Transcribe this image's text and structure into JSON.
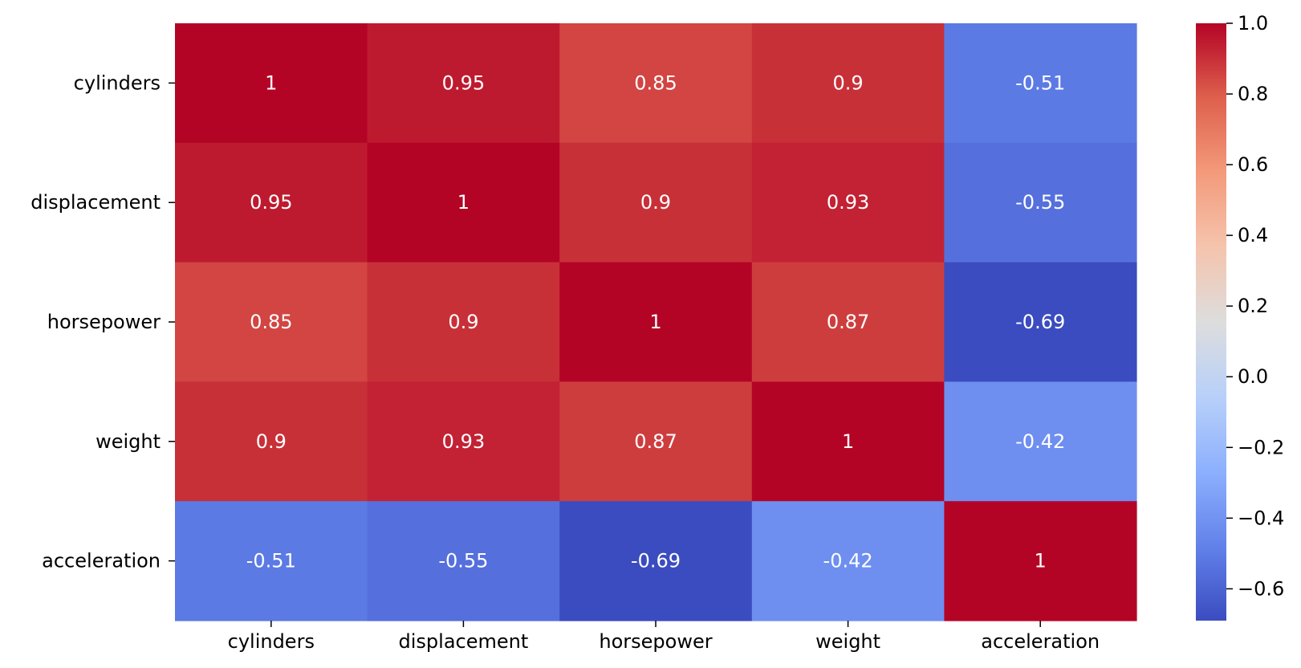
{
  "chart_data": {
    "type": "heatmap",
    "title": "",
    "xlabel": "",
    "ylabel": "",
    "rows": [
      "cylinders",
      "displacement",
      "horsepower",
      "weight",
      "acceleration"
    ],
    "columns": [
      "cylinders",
      "displacement",
      "horsepower",
      "weight",
      "acceleration"
    ],
    "values": [
      [
        1,
        0.95,
        0.85,
        0.9,
        -0.51
      ],
      [
        0.95,
        1,
        0.9,
        0.93,
        -0.55
      ],
      [
        0.85,
        0.9,
        1,
        0.87,
        -0.69
      ],
      [
        0.9,
        0.93,
        0.87,
        1,
        -0.42
      ],
      [
        -0.51,
        -0.55,
        -0.69,
        -0.42,
        1
      ]
    ],
    "cell_labels": [
      [
        "1",
        "0.95",
        "0.85",
        "0.9",
        "-0.51"
      ],
      [
        "0.95",
        "1",
        "0.9",
        "0.93",
        "-0.55"
      ],
      [
        "0.85",
        "0.9",
        "1",
        "0.87",
        "-0.69"
      ],
      [
        "0.9",
        "0.93",
        "0.87",
        "1",
        "-0.42"
      ],
      [
        "-0.51",
        "-0.55",
        "-0.69",
        "-0.42",
        "1"
      ]
    ],
    "colormap": "coolwarm",
    "colorbar": {
      "range": [
        -0.69,
        1.0
      ],
      "ticks": [
        1.0,
        0.8,
        0.6,
        0.4,
        0.2,
        0.0,
        -0.2,
        -0.4,
        -0.6
      ],
      "tick_labels": [
        "1.0",
        "0.8",
        "0.6",
        "0.4",
        "0.2",
        "0.0",
        "−0.2",
        "−0.4",
        "−0.6"
      ],
      "placement": "right"
    },
    "grid": false
  }
}
